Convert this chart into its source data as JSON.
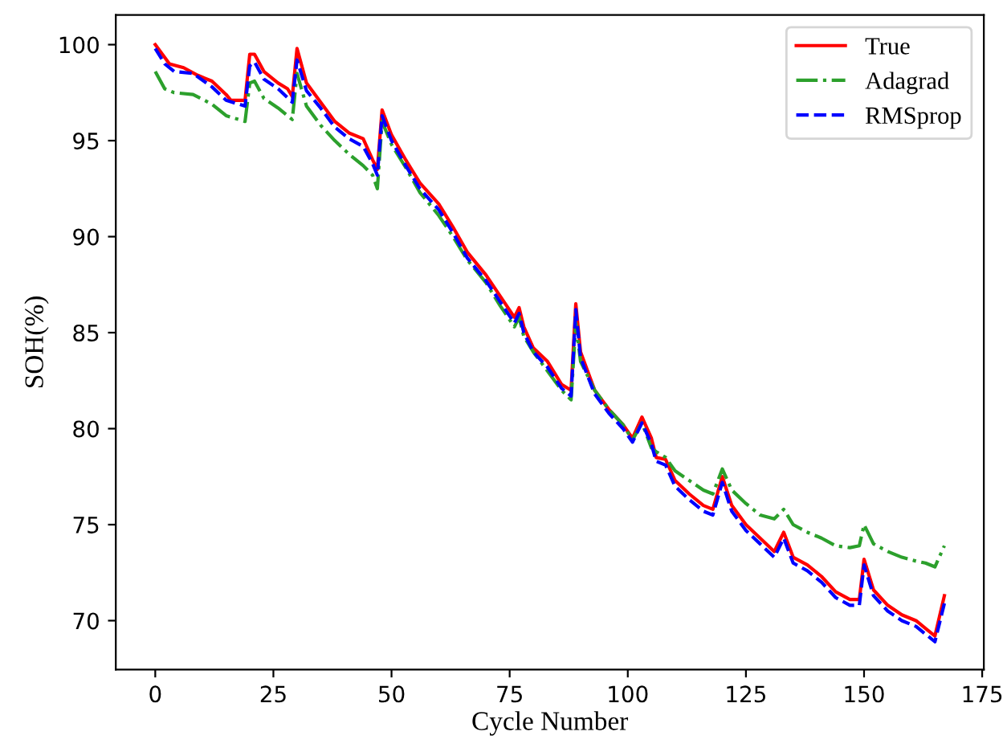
{
  "chart_data": {
    "type": "line",
    "xlabel": "Cycle Number",
    "ylabel": "SOH(%)",
    "xlim": [
      -8.35,
      175.35
    ],
    "ylim": [
      67.45,
      101.55
    ],
    "xticks": [
      0,
      25,
      50,
      75,
      100,
      125,
      150,
      175
    ],
    "yticks": [
      70,
      75,
      80,
      85,
      90,
      95,
      100
    ],
    "grid": false,
    "legend": "top right",
    "series": [
      {
        "name": "True",
        "color": "#ff0000",
        "line_style": "solid",
        "x": [
          0,
          3,
          6,
          9,
          12,
          15,
          16,
          19,
          20,
          21,
          23,
          26,
          28,
          29,
          30,
          32,
          35,
          38,
          41,
          44,
          46,
          47,
          48,
          50,
          53,
          56,
          60,
          63,
          66,
          70,
          73,
          76,
          77,
          78,
          80,
          83,
          86,
          88,
          89,
          90,
          93,
          96,
          99,
          101,
          103,
          105,
          106,
          108,
          110,
          113,
          116,
          118,
          120,
          122,
          125,
          128,
          131,
          133,
          135,
          138,
          141,
          144,
          147,
          149,
          150,
          152,
          155,
          158,
          161,
          163,
          165,
          167
        ],
        "values": [
          100,
          99.0,
          98.8,
          98.4,
          98.1,
          97.4,
          97.1,
          97.1,
          99.5,
          99.5,
          98.6,
          98.0,
          97.7,
          97.3,
          99.8,
          98.0,
          97.0,
          96.0,
          95.4,
          95.1,
          94.0,
          93.5,
          96.6,
          95.3,
          94.0,
          92.8,
          91.7,
          90.5,
          89.2,
          88.0,
          86.9,
          85.8,
          86.3,
          85.3,
          84.2,
          83.5,
          82.3,
          82.0,
          86.5,
          84.0,
          82.0,
          81.0,
          80.2,
          79.5,
          80.6,
          79.5,
          78.5,
          78.4,
          77.3,
          76.6,
          76.0,
          75.8,
          77.5,
          76.0,
          75.0,
          74.3,
          73.6,
          74.6,
          73.3,
          72.9,
          72.3,
          71.5,
          71.1,
          71.1,
          73.2,
          71.6,
          70.8,
          70.3,
          70.0,
          69.6,
          69.2,
          71.3
        ]
      },
      {
        "name": "Adagrad",
        "color": "#2ca02c",
        "line_style": "dashdot",
        "x": [
          0,
          2,
          4,
          8,
          12,
          15,
          19,
          20,
          21,
          23,
          26,
          29,
          30,
          32,
          35,
          38,
          41,
          44,
          46,
          47,
          48,
          50,
          53,
          56,
          60,
          63,
          66,
          70,
          73,
          76,
          77,
          78,
          80,
          83,
          86,
          88,
          89,
          90,
          93,
          96,
          99,
          101,
          103,
          105,
          106,
          108,
          110,
          113,
          116,
          118,
          120,
          122,
          125,
          128,
          131,
          133,
          135,
          138,
          141,
          144,
          147,
          149,
          150,
          152,
          155,
          158,
          161,
          163,
          165,
          167
        ],
        "values": [
          98.6,
          97.7,
          97.5,
          97.4,
          96.9,
          96.3,
          96.0,
          98.0,
          98.1,
          97.2,
          96.7,
          96.1,
          98.5,
          96.8,
          95.8,
          95.0,
          94.3,
          93.7,
          93.2,
          92.5,
          96.0,
          94.8,
          93.6,
          92.3,
          91.1,
          90.0,
          88.8,
          87.6,
          86.4,
          85.3,
          85.8,
          84.8,
          84.0,
          83.0,
          82.0,
          81.5,
          85.5,
          83.5,
          82.0,
          81.0,
          80.2,
          79.4,
          80.3,
          79.0,
          78.8,
          78.5,
          77.8,
          77.3,
          76.8,
          76.6,
          77.9,
          76.8,
          76.1,
          75.5,
          75.3,
          75.8,
          75.0,
          74.6,
          74.3,
          73.9,
          73.8,
          73.9,
          75.0,
          74.0,
          73.6,
          73.3,
          73.1,
          73.0,
          72.8,
          73.9
        ]
      },
      {
        "name": "RMSprop",
        "color": "#0000ff",
        "line_style": "dashed",
        "x": [
          0,
          2,
          4,
          8,
          12,
          15,
          19,
          20,
          21,
          23,
          26,
          29,
          30,
          32,
          35,
          38,
          41,
          44,
          46,
          47,
          48,
          50,
          53,
          56,
          60,
          63,
          66,
          70,
          73,
          76,
          77,
          78,
          80,
          83,
          86,
          88,
          89,
          90,
          93,
          96,
          99,
          101,
          103,
          105,
          106,
          108,
          110,
          113,
          116,
          118,
          120,
          122,
          125,
          128,
          131,
          133,
          135,
          138,
          141,
          144,
          147,
          149,
          150,
          152,
          155,
          158,
          161,
          163,
          165,
          167
        ],
        "values": [
          99.8,
          99.0,
          98.6,
          98.5,
          97.8,
          97.1,
          96.8,
          98.9,
          99.1,
          98.2,
          97.7,
          97.0,
          99.2,
          97.6,
          96.7,
          95.7,
          95.1,
          94.7,
          93.8,
          93.2,
          96.3,
          95.0,
          93.7,
          92.5,
          91.4,
          90.2,
          88.9,
          87.7,
          86.6,
          85.5,
          86.0,
          85.0,
          84.0,
          83.2,
          82.1,
          81.7,
          86.2,
          83.7,
          81.8,
          80.8,
          80.0,
          79.3,
          80.3,
          79.2,
          78.3,
          78.1,
          77.0,
          76.3,
          75.7,
          75.5,
          77.2,
          75.7,
          74.7,
          74.0,
          73.3,
          74.3,
          73.0,
          72.6,
          72.0,
          71.2,
          70.8,
          70.8,
          72.9,
          71.3,
          70.5,
          70.0,
          69.7,
          69.3,
          68.9,
          70.9
        ]
      }
    ]
  }
}
